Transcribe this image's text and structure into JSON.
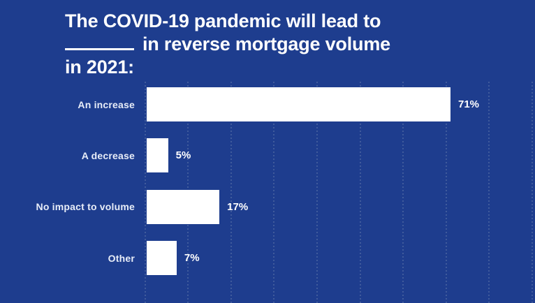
{
  "title": {
    "line1": "The COVID-19 pandemic will lead to",
    "line2_after_blank": "in reverse mortgage volume",
    "line3": "in 2021:"
  },
  "chart_data": {
    "type": "bar",
    "orientation": "horizontal",
    "title": "The COVID-19 pandemic will lead to ________ in reverse mortgage volume in 2021:",
    "categories": [
      "An increase",
      "A decrease",
      "No impact to volume",
      "Other"
    ],
    "values": [
      71,
      5,
      17,
      7
    ],
    "value_labels": [
      "71%",
      "5%",
      "17%",
      "7%"
    ],
    "unit": "%",
    "xlim": [
      0,
      100
    ],
    "grid": "vertical-dotted",
    "legend": "none"
  },
  "colors": {
    "background": "#1e3d8e",
    "bar": "#ffffff",
    "title_text": "#ffffff",
    "label_text": "#e8edf8",
    "value_text": "#ffffff",
    "gridline": "#46609f"
  }
}
